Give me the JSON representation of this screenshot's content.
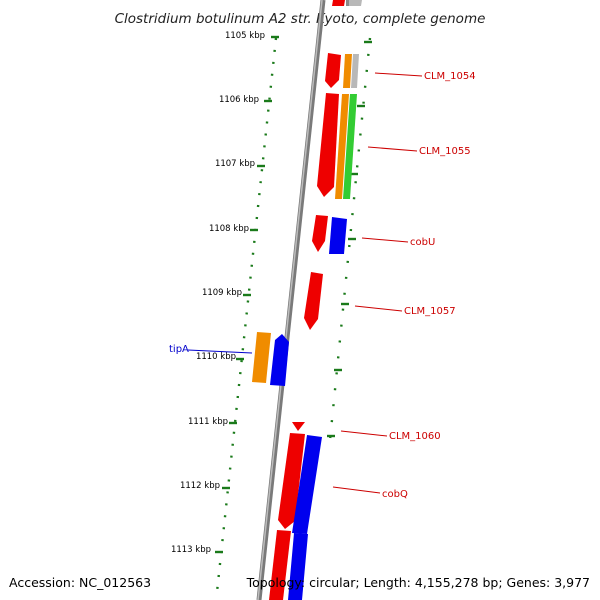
{
  "title": "Clostridium botulinum A2 str. Kyoto, complete genome",
  "accession": "Accession: NC_012563",
  "topology": "Topology: circular; Length: 4,155,278 bp; Genes: 3,977",
  "ruler": [
    "1105 kbp",
    "1106 kbp",
    "1107 kbp",
    "1108 kbp",
    "1109 kbp",
    "1110 kbp",
    "1111 kbp",
    "1112 kbp",
    "1113 kbp"
  ],
  "gene_labels": [
    {
      "text": "CLM_1054",
      "color": "#cc0000"
    },
    {
      "text": "CLM_1055",
      "color": "#cc0000"
    },
    {
      "text": "cobU",
      "color": "#cc0000"
    },
    {
      "text": "CLM_1057",
      "color": "#cc0000"
    },
    {
      "text": "tipA",
      "color": "#0000cc"
    },
    {
      "text": "CLM_1060",
      "color": "#cc0000"
    },
    {
      "text": "cobQ",
      "color": "#cc0000"
    }
  ],
  "colors": {
    "backbone": "#8a8a8a",
    "tick_dots": "#1a7a1a",
    "red": "#ee0000",
    "blue": "#0000ee",
    "orange": "#f08c00",
    "green": "#33cc33",
    "gray": "#b8b8b8"
  }
}
